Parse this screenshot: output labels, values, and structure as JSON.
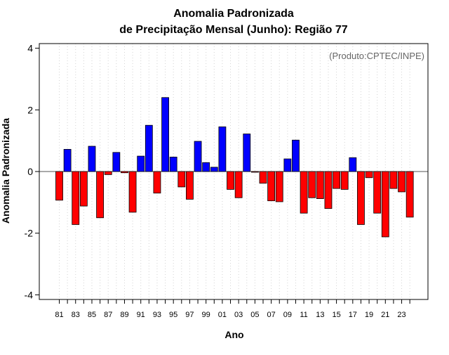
{
  "chart_data": {
    "type": "bar",
    "title_line1": "Anomalia Padronizada",
    "title_line2": "de Precipitação Mensal (Junho): Região 77",
    "xlabel": "Ano",
    "ylabel": "Anomalia Padronizada",
    "credit": "(Produto:CPTEC/INPE)",
    "ylim": [
      -4.15,
      4.15
    ],
    "yticks": [
      -4,
      -2,
      0,
      2,
      4
    ],
    "categories": [
      "81",
      "82",
      "83",
      "84",
      "85",
      "86",
      "87",
      "88",
      "89",
      "90",
      "91",
      "92",
      "93",
      "94",
      "95",
      "96",
      "97",
      "98",
      "99",
      "00",
      "01",
      "02",
      "03",
      "04",
      "05",
      "06",
      "07",
      "08",
      "09",
      "10",
      "11",
      "12",
      "13",
      "14",
      "15",
      "16",
      "17",
      "18",
      "19",
      "20",
      "21",
      "22",
      "23",
      "24"
    ],
    "xtick_labels": [
      "81",
      "83",
      "85",
      "87",
      "89",
      "91",
      "93",
      "95",
      "97",
      "99",
      "01",
      "03",
      "05",
      "07",
      "09",
      "11",
      "13",
      "15",
      "17",
      "19",
      "21",
      "23"
    ],
    "values": [
      -0.93,
      0.72,
      -1.72,
      -1.12,
      0.82,
      -1.5,
      -0.1,
      0.62,
      -0.04,
      -1.32,
      0.5,
      1.5,
      -0.7,
      2.4,
      0.47,
      -0.5,
      -0.9,
      0.98,
      0.29,
      0.14,
      1.45,
      -0.58,
      -0.85,
      1.22,
      -0.02,
      -0.38,
      -0.95,
      -0.98,
      0.41,
      1.02,
      -1.35,
      -0.85,
      -0.88,
      -1.2,
      -0.55,
      -0.58,
      0.45,
      -1.72,
      -0.2,
      -1.35,
      -2.12,
      -0.55,
      -0.66,
      -1.48
    ],
    "positive_color": "#0000ff",
    "negative_color": "#ff0000",
    "bar_stroke": "#000000",
    "grid": true,
    "grid_color": "#d3d3d3"
  }
}
